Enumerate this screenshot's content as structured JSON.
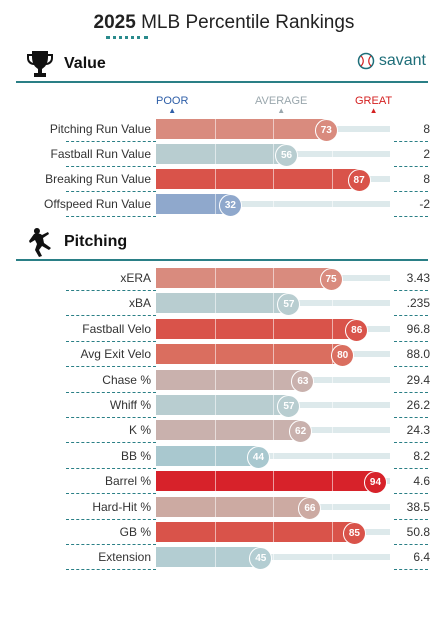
{
  "header": {
    "year": "2025",
    "title": "MLB Percentile Rankings"
  },
  "brand": {
    "name": "savant"
  },
  "scale": {
    "poor": "POOR",
    "average": "AVERAGE",
    "great": "GREAT",
    "colors": {
      "poor": "#2f5fa8",
      "average": "#9aa7ad",
      "great": "#d42020"
    }
  },
  "sections": [
    {
      "title": "Value",
      "icon": "trophy-icon",
      "rows": [
        {
          "label": "Pitching Run Value",
          "percentile": 73,
          "value": "8",
          "color": "#d98b7e"
        },
        {
          "label": "Fastball Run Value",
          "percentile": 56,
          "value": "2",
          "color": "#b8cdd0"
        },
        {
          "label": "Breaking Run Value",
          "percentile": 87,
          "value": "8",
          "color": "#d9534a"
        },
        {
          "label": "Offspeed Run Value",
          "percentile": 32,
          "value": "-2",
          "color": "#8fa8cc"
        }
      ]
    },
    {
      "title": "Pitching",
      "icon": "pitcher-icon",
      "rows": [
        {
          "label": "xERA",
          "percentile": 75,
          "value": "3.43",
          "color": "#d98b7e"
        },
        {
          "label": "xBA",
          "percentile": 57,
          "value": ".235",
          "color": "#b8cdd0"
        },
        {
          "label": "Fastball Velo",
          "percentile": 86,
          "value": "96.8",
          "color": "#d9534a"
        },
        {
          "label": "Avg Exit Velo",
          "percentile": 80,
          "value": "88.0",
          "color": "#da6e5f"
        },
        {
          "label": "Chase %",
          "percentile": 63,
          "value": "29.4",
          "color": "#c9b1ad"
        },
        {
          "label": "Whiff %",
          "percentile": 57,
          "value": "26.2",
          "color": "#b8cdd0"
        },
        {
          "label": "K %",
          "percentile": 62,
          "value": "24.3",
          "color": "#c9b1ad"
        },
        {
          "label": "BB %",
          "percentile": 44,
          "value": "8.2",
          "color": "#a9c8cf"
        },
        {
          "label": "Barrel %",
          "percentile": 94,
          "value": "4.6",
          "color": "#d7222a"
        },
        {
          "label": "Hard-Hit %",
          "percentile": 66,
          "value": "38.5",
          "color": "#ccaaa2"
        },
        {
          "label": "GB %",
          "percentile": 85,
          "value": "50.8",
          "color": "#d9534a"
        },
        {
          "label": "Extension",
          "percentile": 45,
          "value": "6.4",
          "color": "#b3cdd2"
        }
      ]
    }
  ]
}
